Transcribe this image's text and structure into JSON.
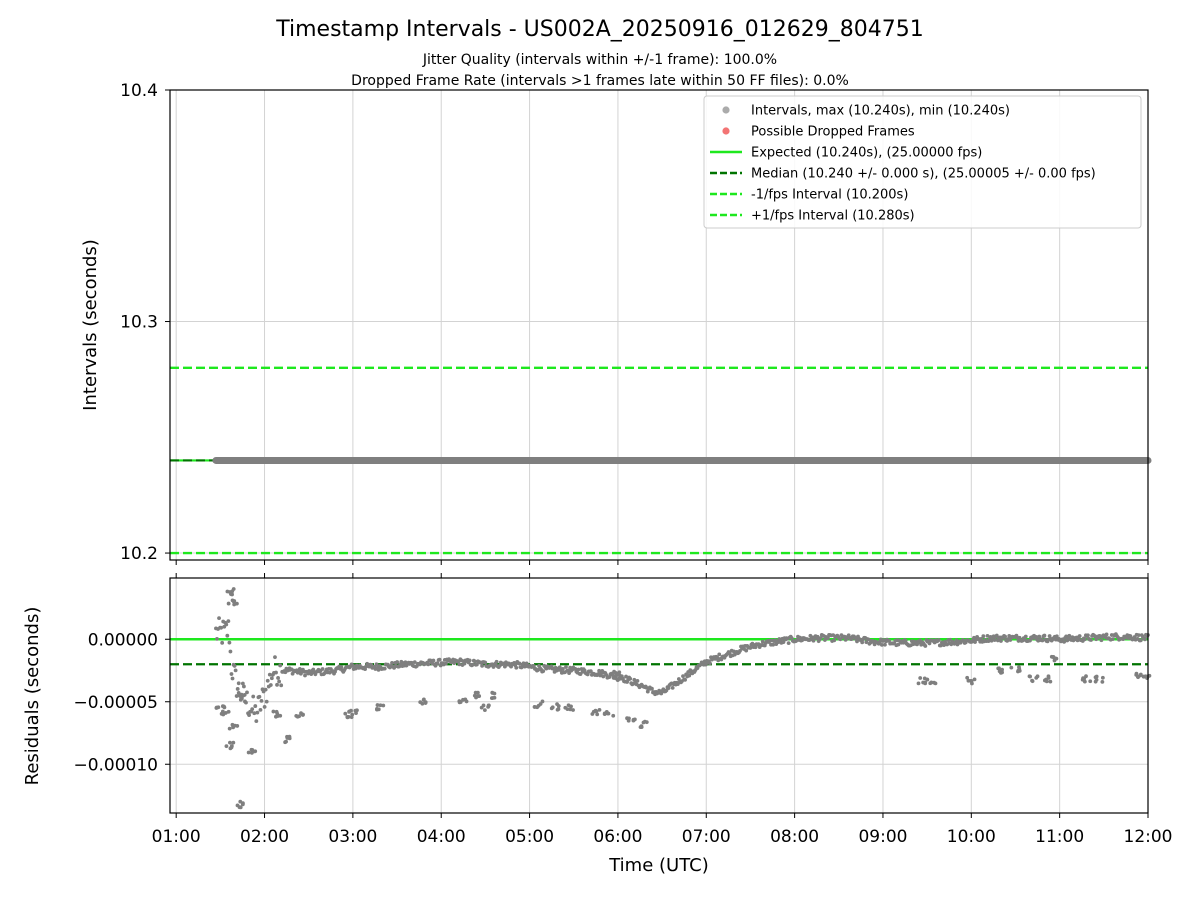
{
  "chart_data": [
    {
      "type": "scatter",
      "title": "Timestamp Intervals - US002A_20250916_012629_804751",
      "subtitle_1": "Jitter Quality (intervals within +/-1 frame): 100.0%",
      "subtitle_2": "Dropped Frame Rate (intervals >1 frames late within 50 FF files): 0.0%",
      "ylabel": "Intervals (seconds)",
      "ylim": [
        10.197,
        10.4
      ],
      "xlim_hours": [
        0.93,
        12.0
      ],
      "yticks": [
        {
          "value": 10.2,
          "label": "10.2"
        },
        {
          "value": 10.3,
          "label": "10.3"
        },
        {
          "value": 10.4,
          "label": "10.4"
        }
      ],
      "intervals_value": 10.24,
      "intervals_start_hour": 1.45,
      "intervals_end_hour": 12.0,
      "expected": 10.24,
      "median": 10.24,
      "minus_fps": 10.2,
      "plus_fps": 10.28,
      "legend": [
        {
          "label": "Intervals, max (10.240s), min (10.240s)",
          "kind": "dot",
          "color": "#a6a6a6"
        },
        {
          "label": "Possible Dropped Frames",
          "kind": "dot",
          "color": "#f26d6d"
        },
        {
          "label": "Expected (10.240s), (25.00000 fps)",
          "kind": "solid",
          "color": "#1ee81e"
        },
        {
          "label": "Median (10.240 +/- 0.000 s), (25.00005 +/- 0.00 fps)",
          "kind": "dashed",
          "color": "#007400"
        },
        {
          "label": "-1/fps Interval (10.200s)",
          "kind": "dashed",
          "color": "#1ee81e"
        },
        {
          "label": "+1/fps Interval (10.280s)",
          "kind": "dashed",
          "color": "#1ee81e"
        }
      ]
    },
    {
      "type": "scatter",
      "ylabel": "Residuals (seconds)",
      "xlabel": "Time (UTC)",
      "ylim": [
        -0.000139,
        4.9e-05
      ],
      "xlim_hours": [
        0.93,
        12.0
      ],
      "yticks": [
        {
          "value": 0.0,
          "label": "0.00000"
        },
        {
          "value": -5e-05,
          "label": "−0.00005"
        },
        {
          "value": -0.0001,
          "label": "−0.00010"
        }
      ],
      "xticks": [
        {
          "hour": 1,
          "label": "01:00"
        },
        {
          "hour": 2,
          "label": "02:00"
        },
        {
          "hour": 3,
          "label": "03:00"
        },
        {
          "hour": 4,
          "label": "04:00"
        },
        {
          "hour": 5,
          "label": "05:00"
        },
        {
          "hour": 6,
          "label": "06:00"
        },
        {
          "hour": 7,
          "label": "07:00"
        },
        {
          "hour": 8,
          "label": "08:00"
        },
        {
          "hour": 9,
          "label": "09:00"
        },
        {
          "hour": 10,
          "label": "10:00"
        },
        {
          "hour": 11,
          "label": "11:00"
        },
        {
          "hour": 12,
          "label": "12:00"
        }
      ],
      "expected_residual": 0.0,
      "median_residual": -2e-05,
      "residual_trend": [
        [
          1.45,
          5e-06
        ],
        [
          1.55,
          5e-06
        ],
        [
          1.6,
          8e-06
        ],
        [
          1.62,
          -2e-05
        ],
        [
          1.7,
          -4e-05
        ],
        [
          1.8,
          -5e-05
        ],
        [
          1.9,
          -6e-05
        ],
        [
          2.0,
          -4.5e-05
        ],
        [
          2.1,
          -2.5e-05
        ],
        [
          2.3,
          -2.5e-05
        ],
        [
          2.5,
          -2.7e-05
        ],
        [
          2.8,
          -2.5e-05
        ],
        [
          3.0,
          -2.2e-05
        ],
        [
          3.3,
          -2.2e-05
        ],
        [
          3.6,
          -2e-05
        ],
        [
          3.9,
          -1.9e-05
        ],
        [
          4.2,
          -1.8e-05
        ],
        [
          4.5,
          -2e-05
        ],
        [
          4.8,
          -2e-05
        ],
        [
          5.0,
          -2.2e-05
        ],
        [
          5.2,
          -2.4e-05
        ],
        [
          5.5,
          -2.5e-05
        ],
        [
          5.8,
          -2.7e-05
        ],
        [
          6.1,
          -3.2e-05
        ],
        [
          6.3,
          -3.8e-05
        ],
        [
          6.4,
          -4.2e-05
        ],
        [
          6.5,
          -4.3e-05
        ],
        [
          6.6,
          -3.8e-05
        ],
        [
          6.8,
          -2.8e-05
        ],
        [
          7.0,
          -1.8e-05
        ],
        [
          7.2,
          -1.3e-05
        ],
        [
          7.4,
          -8e-06
        ],
        [
          7.6,
          -4e-06
        ],
        [
          7.8,
          -2e-06
        ],
        [
          8.0,
          0.0
        ],
        [
          8.3,
          1e-06
        ],
        [
          8.6,
          1e-06
        ],
        [
          8.9,
          -2e-06
        ],
        [
          9.2,
          -3e-06
        ],
        [
          9.5,
          -3e-06
        ],
        [
          9.8,
          -2e-06
        ],
        [
          10.0,
          -1e-06
        ],
        [
          10.2,
          1e-06
        ],
        [
          10.5,
          1e-06
        ],
        [
          10.8,
          1e-06
        ],
        [
          11.0,
          0.0
        ],
        [
          11.3,
          1e-06
        ],
        [
          11.6,
          2e-06
        ],
        [
          11.8,
          2e-06
        ],
        [
          12.0,
          1e-06
        ]
      ],
      "residual_clusters": [
        [
          1.5,
          -5.5e-05
        ],
        [
          1.55,
          -6e-05
        ],
        [
          1.6,
          -8.5e-05
        ],
        [
          1.62,
          3.8e-05
        ],
        [
          1.64,
          3e-05
        ],
        [
          1.65,
          -7e-05
        ],
        [
          1.72,
          -0.000132
        ],
        [
          1.75,
          -4.5e-05
        ],
        [
          1.85,
          -9e-05
        ],
        [
          2.15,
          -6e-05
        ],
        [
          2.25,
          -8e-05
        ],
        [
          2.4,
          -6e-05
        ],
        [
          2.95,
          -6e-05
        ],
        [
          3.0,
          -5.8e-05
        ],
        [
          3.3,
          -5.5e-05
        ],
        [
          3.8,
          -5e-05
        ],
        [
          4.25,
          -5e-05
        ],
        [
          4.4,
          -4.5e-05
        ],
        [
          4.5,
          -5.5e-05
        ],
        [
          4.6,
          -4.5e-05
        ],
        [
          5.1,
          -5.2e-05
        ],
        [
          5.3,
          -5.4e-05
        ],
        [
          5.45,
          -5.5e-05
        ],
        [
          5.75,
          -5.8e-05
        ],
        [
          5.9,
          -6e-05
        ],
        [
          6.0,
          -2.8e-05
        ],
        [
          6.15,
          -6.5e-05
        ],
        [
          6.3,
          -6.8e-05
        ],
        [
          9.45,
          -3.3e-05
        ],
        [
          9.55,
          -3.3e-05
        ],
        [
          10.0,
          -3.3e-05
        ],
        [
          10.35,
          -2.5e-05
        ],
        [
          10.5,
          -2.4e-05
        ],
        [
          10.7,
          -3.2e-05
        ],
        [
          10.85,
          -3.2e-05
        ],
        [
          10.95,
          -1.5e-05
        ],
        [
          11.3,
          -3.2e-05
        ],
        [
          11.45,
          -3.2e-05
        ],
        [
          11.9,
          -3e-05
        ],
        [
          12.0,
          -3.1e-05
        ]
      ]
    }
  ]
}
